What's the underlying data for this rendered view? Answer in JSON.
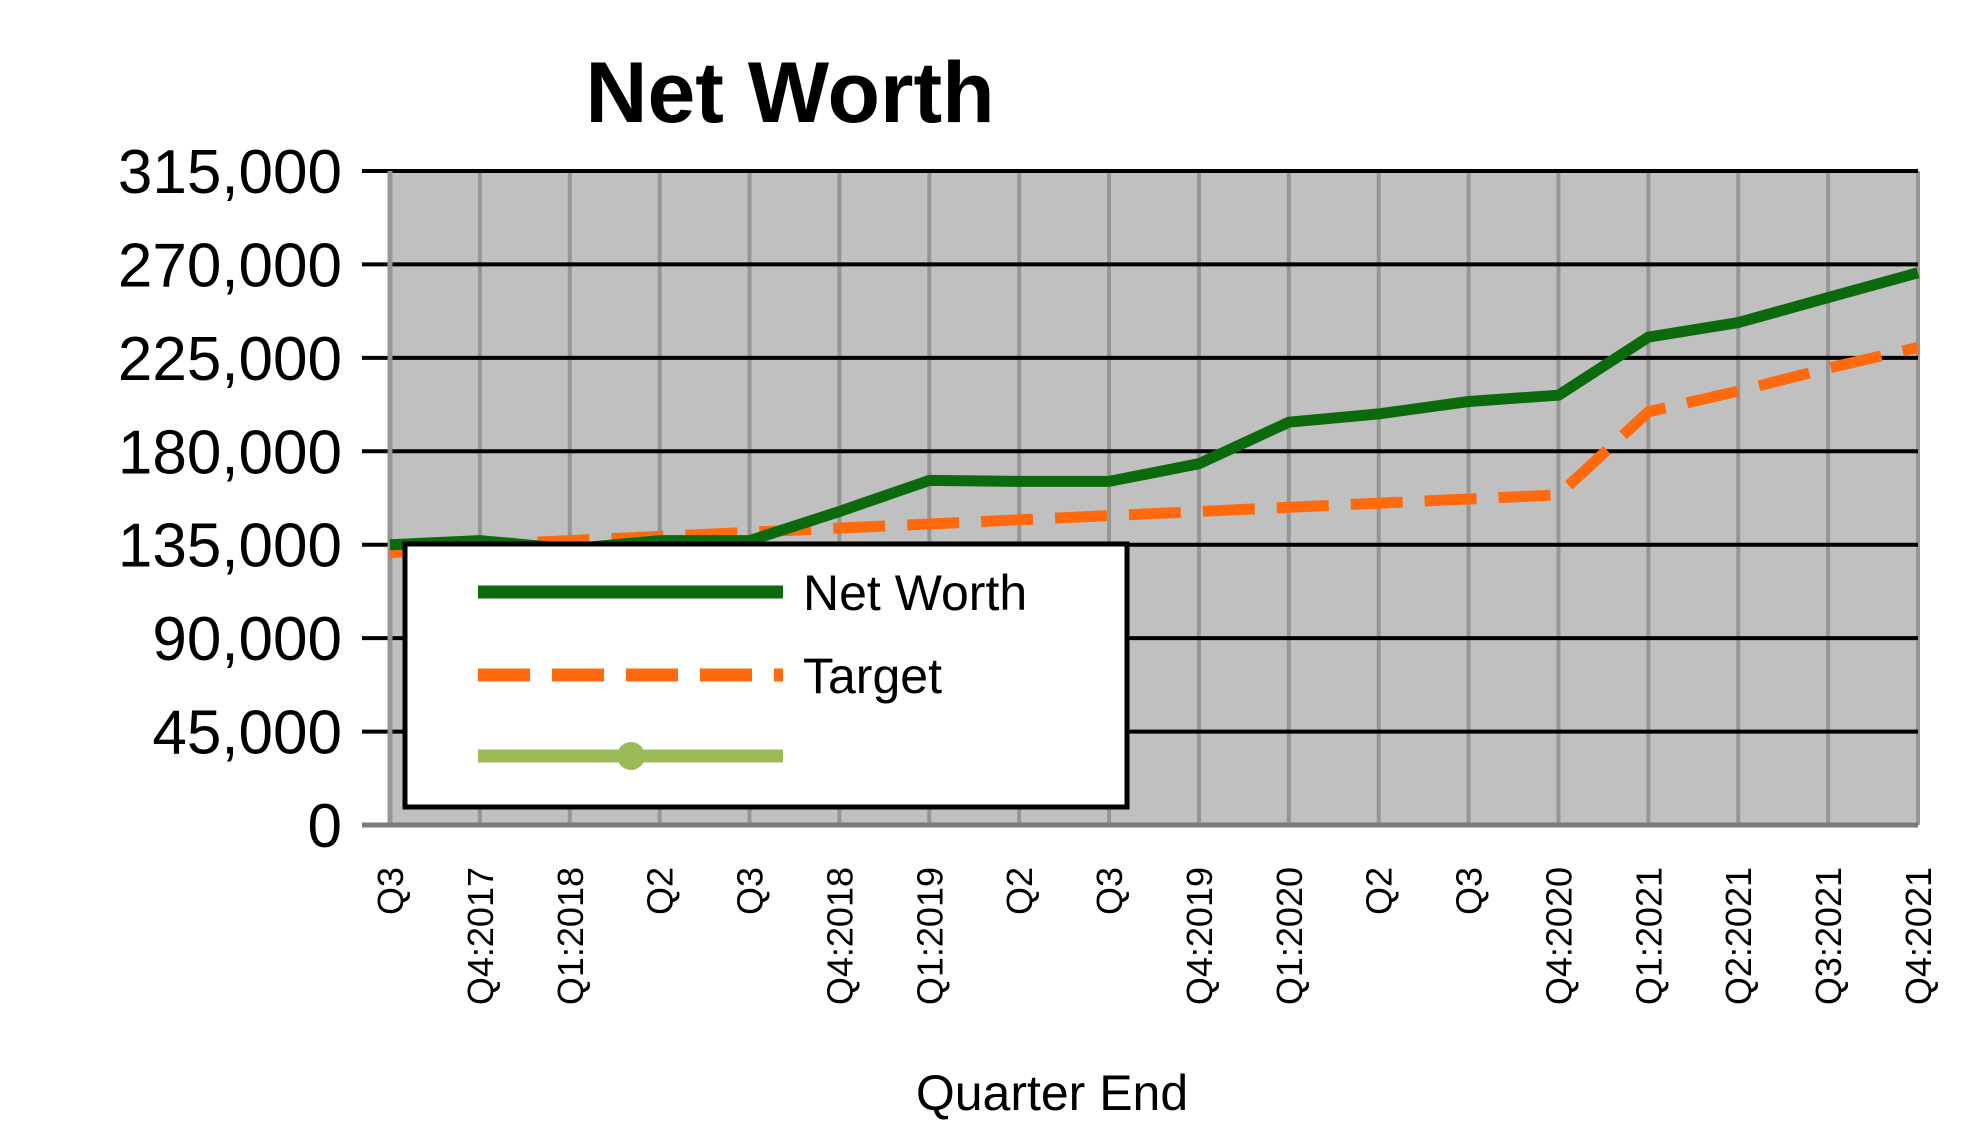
{
  "chart_data": {
    "type": "line",
    "title": "Net Worth",
    "xlabel": "Quarter End",
    "ylabel": "",
    "ylim": [
      0,
      315000
    ],
    "yticks": [
      0,
      45000,
      90000,
      135000,
      180000,
      225000,
      270000,
      315000
    ],
    "ytick_labels": [
      "0",
      "45,000",
      "90,000",
      "135,000",
      "180,000",
      "225,000",
      "270,000",
      "315,000"
    ],
    "categories": [
      "Q3",
      "Q4:2017",
      "Q1:2018",
      "Q2",
      "Q3",
      "Q4:2018",
      "Q1:2019",
      "Q2",
      "Q3",
      "Q4:2019",
      "Q1:2020",
      "Q2",
      "Q3",
      "Q4:2020",
      "Q1:2021",
      "Q2:2021",
      "Q3:2021",
      "Q4:2021"
    ],
    "series": [
      {
        "name": "Net Worth",
        "color": "#0b6a0b",
        "style": "solid",
        "values": [
          135000,
          137000,
          133000,
          137000,
          137000,
          151000,
          166000,
          165500,
          165500,
          174000,
          194000,
          198000,
          204000,
          207000,
          235000,
          242000,
          254000,
          266000
        ]
      },
      {
        "name": "Target",
        "color": "#ff6a0e",
        "style": "dashed",
        "values": [
          131000,
          135000,
          137000,
          139000,
          141000,
          143000,
          145000,
          147000,
          149000,
          151000,
          153000,
          155000,
          157000,
          159000,
          199000,
          209000,
          220000,
          230000
        ]
      }
    ],
    "legend": {
      "placement": "inside-lower-left",
      "entries": [
        {
          "label": "Net Worth",
          "color": "#0b6a0b",
          "style": "solid"
        },
        {
          "label": "Target",
          "color": "#ff6a0e",
          "style": "dashed"
        },
        {
          "label": "",
          "color": "#9bbb59",
          "style": "solid-marker"
        }
      ]
    },
    "plot_background": "#c0c0c0",
    "grid": true
  }
}
